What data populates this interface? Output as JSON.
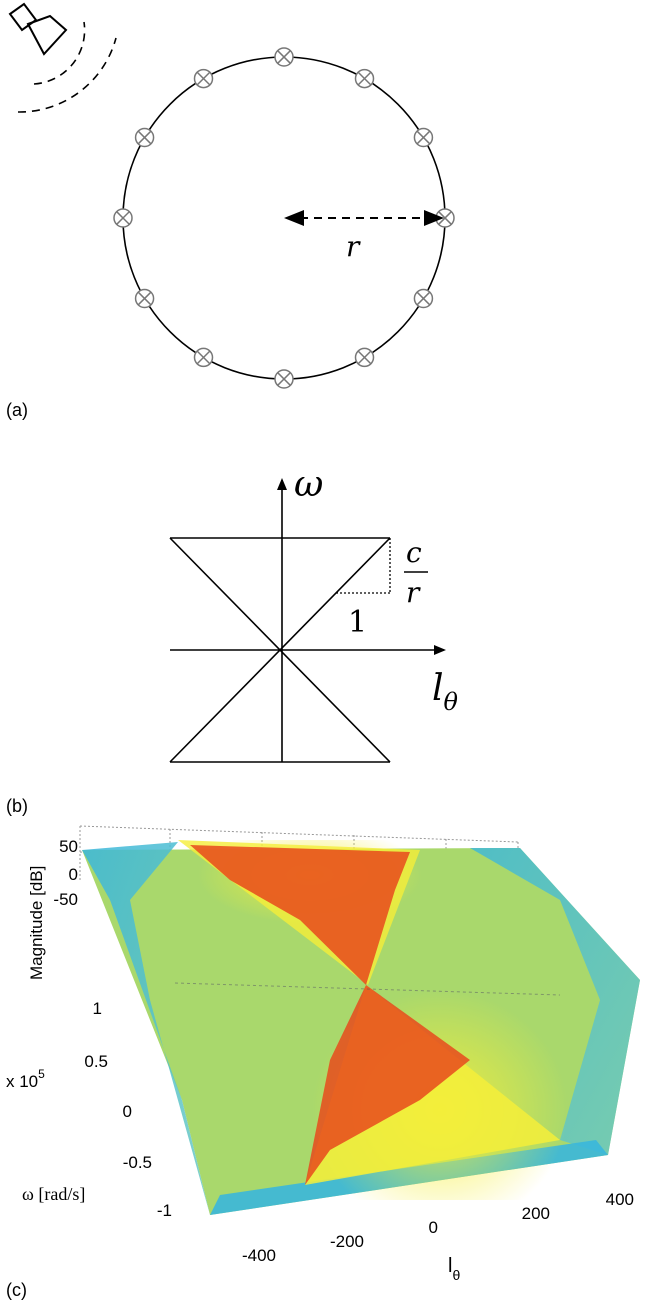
{
  "panel_a": {
    "label": "(a)",
    "radius_symbol": "r",
    "microphone_count": 12,
    "icons": [
      "loudspeaker-icon",
      "microphone-icon"
    ]
  },
  "panel_b": {
    "label": "(b)",
    "vertical_axis_symbol": "ω",
    "horizontal_axis_symbol": "l",
    "horizontal_axis_subscript": "θ",
    "slope_numerator": "c",
    "slope_denominator": "r",
    "run_label": "1"
  },
  "panel_c": {
    "label": "(c)",
    "z_axis_label": "Magnitude [dB]",
    "z_ticks": [
      "50",
      "0",
      "-50"
    ],
    "y_axis_label": "ω [rad/s]",
    "y_scale_prefix": "x 10",
    "y_scale_exponent": "5",
    "y_ticks": [
      "1",
      "0.5",
      "0",
      "-0.5",
      "-1"
    ],
    "x_axis_label": "l",
    "x_axis_subscript": "θ",
    "x_ticks": [
      "-400",
      "-200",
      "0",
      "200",
      "400"
    ],
    "colors": {
      "low": "#3ab7dc",
      "mid": "#9fd86a",
      "high": "#f5ee3a",
      "peak": "#e84a1c"
    }
  }
}
